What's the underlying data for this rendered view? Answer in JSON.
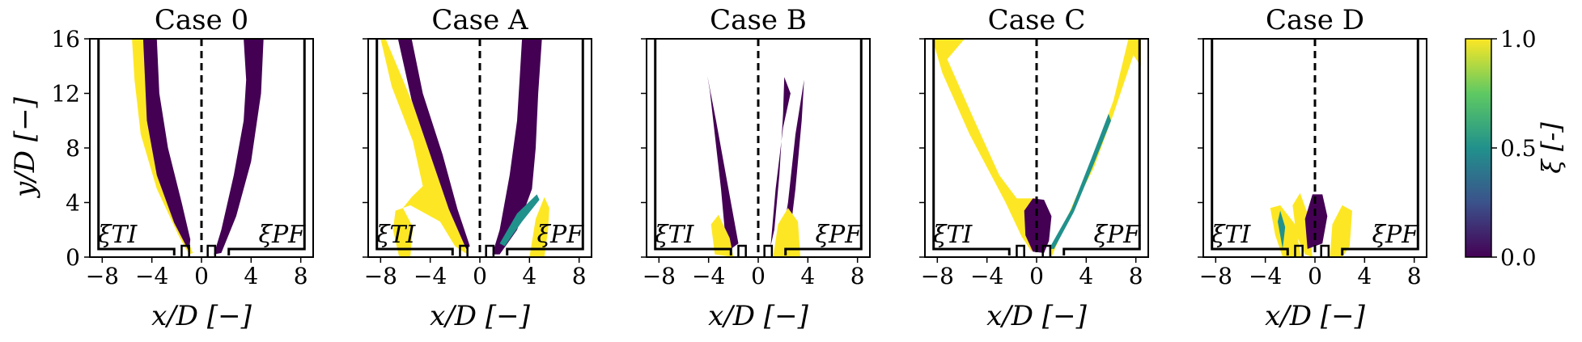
{
  "figure": {
    "panels": [
      "Case 0",
      "Case A",
      "Case B",
      "Case C",
      "Case D"
    ],
    "xlabel": "x/D [−]",
    "ylabel": "y/D [−]",
    "annot_left": "ξTI",
    "annot_right": "ξPF",
    "colorbar_label": "ξ [-]"
  },
  "chart_data": {
    "type": "contour",
    "panel_titles": [
      "Case 0",
      "Case A",
      "Case B",
      "Case C",
      "Case D"
    ],
    "xlabel": "x/D [−]",
    "ylabel": "y/D [−]",
    "xlim": [
      -9,
      9
    ],
    "ylim": [
      0,
      16
    ],
    "xticks": [
      -8,
      -4,
      0,
      4,
      8
    ],
    "yticks": [
      0,
      4,
      8,
      12,
      16
    ],
    "annotations": [
      "ξTI",
      "ξPF"
    ],
    "colorbar": {
      "label": "ξ [-]",
      "range": [
        0.0,
        1.0
      ],
      "ticks": [
        "0.0",
        "0.5",
        "1.0"
      ],
      "colormap": "viridis",
      "colors": [
        "#440154",
        "#3b528b",
        "#21918c",
        "#5ec962",
        "#fde725"
      ]
    },
    "centerline_x": 0,
    "features": [
      {
        "panel": "Case 0",
        "left": {
          "xi": 1.0,
          "x_range": [
            -5.6,
            -1.0
          ],
          "y_max": 16
        },
        "right": {
          "xi": 0.0,
          "x_range": [
            1.0,
            5.0
          ],
          "y_max": 16
        }
      },
      {
        "panel": "Case A",
        "left": {
          "xi": 1.0,
          "x_range": [
            -8.0,
            -1.0
          ],
          "y_max": 16
        },
        "right": {
          "xi": 0.0,
          "x_range": [
            1.0,
            5.5
          ],
          "y_max": 16
        }
      },
      {
        "panel": "Case B",
        "left": {
          "xi": 0.0,
          "x_range": [
            -4.2,
            -1.2
          ],
          "y_max": 13.3
        },
        "right": {
          "xi": 0.0,
          "x_range": [
            1.0,
            3.7
          ],
          "y_max": 13.0
        }
      },
      {
        "panel": "Case C",
        "left": {
          "xi": 1.0,
          "x_range": [
            -8.3,
            0.0
          ],
          "y_max": 16
        },
        "right": {
          "xi": 1.0,
          "x_range": [
            0.0,
            8.3
          ],
          "y_max": 16
        }
      },
      {
        "panel": "Case D",
        "left": {
          "xi": 1.0,
          "x_range": [
            -3.5,
            0.0
          ],
          "y_max": 4.7
        },
        "right": {
          "xi": 1.0,
          "x_range": [
            0.0,
            3.0
          ],
          "y_max": 4.3
        }
      }
    ]
  }
}
